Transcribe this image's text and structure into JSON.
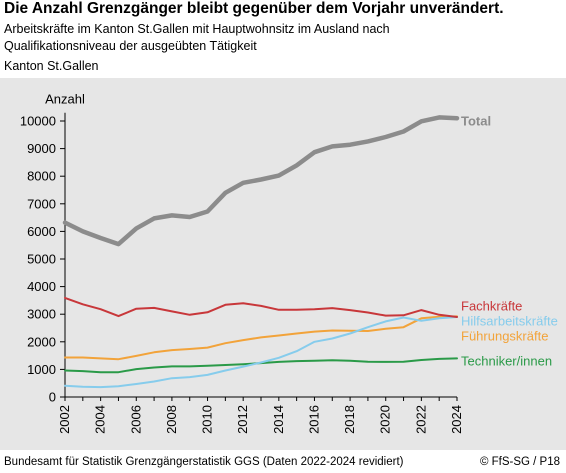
{
  "header": {
    "title": "Die Anzahl Grenzgänger bleibt gegenüber dem Vorjahr unverändert.",
    "subtitle_line1": "Arbeitskräfte im Kanton St.Gallen mit Hauptwohnsitz im Ausland nach",
    "subtitle_line2": "Qualifikationsniveau der ausgeübten Tätigkeit",
    "region": "Kanton St.Gallen"
  },
  "footer": {
    "source": "Bundesamt für Statistik Grenzgängerstatistik GGS (Daten 2022-2024 revidiert)",
    "credit": "© FfS-SG / P18"
  },
  "chart_data": {
    "type": "line",
    "title": "",
    "xlabel": "",
    "ylabel": "Anzahl",
    "x": [
      2002,
      2003,
      2004,
      2005,
      2006,
      2007,
      2008,
      2009,
      2010,
      2011,
      2012,
      2013,
      2014,
      2015,
      2016,
      2017,
      2018,
      2019,
      2020,
      2021,
      2022,
      2023,
      2024
    ],
    "xticks": [
      2002,
      2004,
      2006,
      2008,
      2010,
      2012,
      2014,
      2016,
      2018,
      2020,
      2022,
      2024
    ],
    "yticks": [
      0,
      1000,
      2000,
      3000,
      4000,
      5000,
      6000,
      7000,
      8000,
      9000,
      10000
    ],
    "ylim": [
      0,
      10300
    ],
    "grid": false,
    "legend": "direct labels at right end of lines",
    "series": [
      {
        "name": "Total",
        "color": "#8c8c8c",
        "width": 4.5,
        "values": [
          6320,
          6000,
          5760,
          5540,
          6110,
          6470,
          6580,
          6520,
          6720,
          7400,
          7760,
          7880,
          8020,
          8390,
          8870,
          9080,
          9140,
          9260,
          9420,
          9620,
          9990,
          10130,
          10100
        ]
      },
      {
        "name": "Fachkräfte",
        "color": "#c8373a",
        "width": 2,
        "values": [
          3590,
          3360,
          3180,
          2930,
          3200,
          3230,
          3100,
          2980,
          3070,
          3340,
          3400,
          3300,
          3160,
          3160,
          3180,
          3220,
          3150,
          3060,
          2950,
          2960,
          3150,
          2980,
          2900
        ]
      },
      {
        "name": "Hilfsarbeitskräfte",
        "color": "#86ccec",
        "width": 2,
        "values": [
          410,
          370,
          360,
          390,
          470,
          560,
          680,
          720,
          800,
          960,
          1100,
          1250,
          1420,
          1660,
          2000,
          2120,
          2300,
          2530,
          2740,
          2880,
          2760,
          2850,
          2900
        ]
      },
      {
        "name": "Führungskräfte",
        "color": "#f2a33a",
        "width": 2,
        "values": [
          1430,
          1430,
          1400,
          1370,
          1490,
          1620,
          1700,
          1740,
          1790,
          1950,
          2060,
          2160,
          2230,
          2300,
          2370,
          2410,
          2400,
          2390,
          2470,
          2530,
          2850,
          2910,
          2920
        ]
      },
      {
        "name": "Techniker/innen",
        "color": "#2a9a48",
        "width": 2,
        "values": [
          960,
          940,
          900,
          900,
          1010,
          1070,
          1110,
          1110,
          1130,
          1160,
          1190,
          1230,
          1270,
          1300,
          1310,
          1330,
          1310,
          1280,
          1270,
          1280,
          1340,
          1380,
          1400
        ]
      }
    ]
  }
}
